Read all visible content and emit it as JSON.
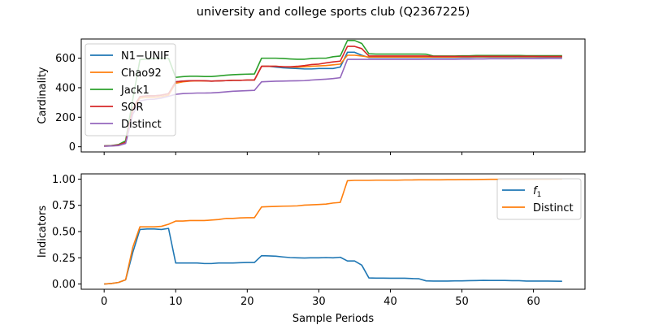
{
  "figure": {
    "title": "university and college sports club (Q2367225)"
  },
  "colors": {
    "blue": "#1f77b4",
    "orange": "#ff7f0e",
    "green": "#2ca02c",
    "red": "#d62728",
    "purple": "#9467bd"
  },
  "chart_data": [
    {
      "type": "line",
      "panel": "top",
      "xlabel": "",
      "ylabel": "Cardinality",
      "xlim": [
        -3.2,
        67.2
      ],
      "ylim": [
        -35,
        730
      ],
      "yticks": [
        0,
        200,
        400,
        600
      ],
      "xticks": [
        0,
        10,
        20,
        30,
        40,
        50,
        60
      ],
      "show_xtick_labels": false,
      "grid": false,
      "legend_position": "upper-left",
      "x": [
        0,
        1,
        2,
        3,
        4,
        5,
        6,
        7,
        8,
        9,
        10,
        11,
        12,
        13,
        14,
        15,
        16,
        17,
        18,
        19,
        20,
        21,
        22,
        23,
        24,
        25,
        26,
        27,
        28,
        29,
        30,
        31,
        32,
        33,
        34,
        35,
        36,
        37,
        38,
        39,
        40,
        41,
        42,
        43,
        44,
        45,
        46,
        47,
        48,
        49,
        50,
        51,
        52,
        53,
        54,
        55,
        56,
        57,
        58,
        59,
        60,
        61,
        62,
        63,
        64
      ],
      "series": [
        {
          "name": "N1−UNIF",
          "color": "#1f77b4",
          "values": [
            5,
            7,
            12,
            30,
            260,
            340,
            345,
            345,
            350,
            360,
            440,
            445,
            447,
            448,
            447,
            445,
            446,
            448,
            450,
            450,
            452,
            452,
            545,
            545,
            540,
            535,
            532,
            530,
            527,
            527,
            530,
            530,
            530,
            540,
            640,
            640,
            620,
            605,
            605,
            605,
            605,
            605,
            605,
            605,
            605,
            605,
            605,
            605,
            605,
            605,
            606,
            606,
            607,
            607,
            607,
            607,
            607,
            607,
            607,
            607,
            607,
            607,
            607,
            607,
            607
          ]
        },
        {
          "name": "Chao92",
          "color": "#ff7f0e",
          "values": [
            4,
            6,
            10,
            28,
            250,
            330,
            335,
            335,
            340,
            350,
            430,
            440,
            445,
            447,
            446,
            445,
            446,
            448,
            450,
            450,
            452,
            452,
            545,
            545,
            545,
            542,
            540,
            540,
            542,
            545,
            548,
            550,
            555,
            560,
            620,
            620,
            615,
            608,
            608,
            608,
            608,
            608,
            608,
            608,
            608,
            608,
            608,
            608,
            608,
            608,
            609,
            609,
            610,
            610,
            610,
            610,
            610,
            610,
            610,
            610,
            610,
            610,
            610,
            610,
            610
          ]
        },
        {
          "name": "Jack1",
          "color": "#2ca02c",
          "values": [
            6,
            8,
            15,
            40,
            320,
            590,
            595,
            597,
            600,
            600,
            470,
            475,
            478,
            478,
            476,
            476,
            480,
            485,
            488,
            490,
            492,
            493,
            600,
            600,
            600,
            598,
            595,
            593,
            593,
            598,
            600,
            600,
            610,
            615,
            720,
            720,
            700,
            630,
            628,
            628,
            628,
            628,
            628,
            628,
            628,
            627,
            615,
            615,
            615,
            615,
            616,
            616,
            618,
            618,
            618,
            618,
            618,
            618,
            618,
            617,
            617,
            617,
            617,
            617,
            617
          ]
        },
        {
          "name": "SOR",
          "color": "#d62728",
          "values": [
            5,
            7,
            12,
            30,
            260,
            340,
            345,
            345,
            350,
            360,
            440,
            445,
            447,
            448,
            447,
            445,
            446,
            448,
            450,
            450,
            452,
            452,
            545,
            545,
            545,
            542,
            542,
            545,
            550,
            557,
            560,
            568,
            575,
            580,
            680,
            680,
            665,
            615,
            615,
            615,
            615,
            615,
            615,
            615,
            615,
            615,
            612,
            612,
            612,
            612,
            612,
            612,
            613,
            613,
            613,
            613,
            613,
            613,
            613,
            613,
            613,
            612,
            612,
            612,
            612
          ]
        },
        {
          "name": "Distinct",
          "color": "#9467bd",
          "values": [
            3,
            5,
            8,
            22,
            220,
            310,
            320,
            322,
            330,
            342,
            355,
            360,
            362,
            364,
            364,
            365,
            368,
            372,
            376,
            378,
            380,
            382,
            440,
            442,
            444,
            445,
            446,
            447,
            448,
            452,
            455,
            458,
            462,
            468,
            592,
            592,
            592,
            592,
            592,
            592,
            592,
            592,
            592,
            592,
            592,
            593,
            593,
            593,
            593,
            593,
            594,
            594,
            595,
            595,
            596,
            596,
            596,
            596,
            597,
            597,
            597,
            597,
            598,
            598,
            598
          ]
        }
      ]
    },
    {
      "type": "line",
      "panel": "bottom",
      "xlabel": "Sample Periods",
      "ylabel": "Indicators",
      "xlim": [
        -3.2,
        67.2
      ],
      "ylim": [
        -0.05,
        1.05
      ],
      "yticks": [
        0.0,
        0.25,
        0.5,
        0.75,
        1.0
      ],
      "ytick_labels": [
        "0.00",
        "0.25",
        "0.50",
        "0.75",
        "1.00"
      ],
      "xticks": [
        0,
        10,
        20,
        30,
        40,
        50,
        60
      ],
      "xtick_labels": [
        "0",
        "10",
        "20",
        "30",
        "40",
        "50",
        "60"
      ],
      "grid": false,
      "legend_position": "upper-right",
      "x": [
        0,
        1,
        2,
        3,
        4,
        5,
        6,
        7,
        8,
        9,
        10,
        11,
        12,
        13,
        14,
        15,
        16,
        17,
        18,
        19,
        20,
        21,
        22,
        23,
        24,
        25,
        26,
        27,
        28,
        29,
        30,
        31,
        32,
        33,
        34,
        35,
        36,
        37,
        38,
        39,
        40,
        41,
        42,
        43,
        44,
        45,
        46,
        47,
        48,
        49,
        50,
        51,
        52,
        53,
        54,
        55,
        56,
        57,
        58,
        59,
        60,
        61,
        62,
        63,
        64
      ],
      "series": [
        {
          "name": "f1",
          "legend_label_main": "f",
          "legend_label_sub": "1",
          "color": "#1f77b4",
          "values": [
            0.0,
            0.005,
            0.015,
            0.04,
            0.3,
            0.52,
            0.525,
            0.525,
            0.52,
            0.53,
            0.2,
            0.2,
            0.2,
            0.2,
            0.195,
            0.195,
            0.2,
            0.2,
            0.2,
            0.203,
            0.205,
            0.205,
            0.27,
            0.268,
            0.265,
            0.258,
            0.252,
            0.25,
            0.248,
            0.25,
            0.25,
            0.252,
            0.25,
            0.255,
            0.22,
            0.22,
            0.18,
            0.058,
            0.056,
            0.056,
            0.055,
            0.055,
            0.055,
            0.052,
            0.05,
            0.03,
            0.028,
            0.028,
            0.028,
            0.03,
            0.03,
            0.032,
            0.033,
            0.035,
            0.034,
            0.034,
            0.034,
            0.032,
            0.032,
            0.028,
            0.028,
            0.028,
            0.028,
            0.027,
            0.026
          ]
        },
        {
          "name": "Distinct",
          "color": "#ff7f0e",
          "values": [
            0.0,
            0.005,
            0.015,
            0.04,
            0.35,
            0.545,
            0.545,
            0.545,
            0.55,
            0.57,
            0.6,
            0.6,
            0.605,
            0.605,
            0.605,
            0.61,
            0.615,
            0.625,
            0.625,
            0.63,
            0.632,
            0.632,
            0.735,
            0.738,
            0.74,
            0.742,
            0.743,
            0.745,
            0.752,
            0.755,
            0.758,
            0.762,
            0.772,
            0.778,
            0.985,
            0.988,
            0.988,
            0.988,
            0.99,
            0.99,
            0.99,
            0.99,
            0.992,
            0.992,
            0.993,
            0.993,
            0.993,
            0.993,
            0.994,
            0.994,
            0.995,
            0.995,
            0.996,
            0.997,
            0.998,
            0.998,
            0.998,
            0.998,
            0.998,
            0.998,
            0.998,
            0.999,
            0.999,
            1.0,
            1.0
          ]
        }
      ]
    }
  ]
}
